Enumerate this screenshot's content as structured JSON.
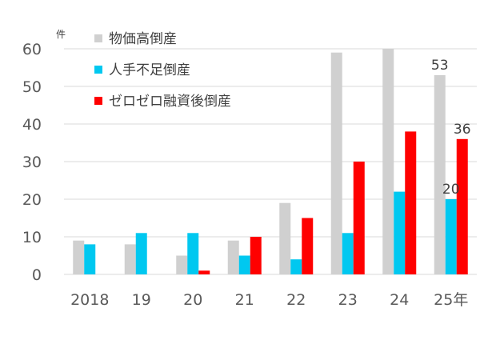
{
  "chart_data": {
    "type": "bar",
    "unit_label": "件",
    "categories": [
      "2018",
      "19",
      "20",
      "21",
      "22",
      "23",
      "24",
      "25年"
    ],
    "series": [
      {
        "name": "物価高倒産",
        "color": "#d0d0d0",
        "values": [
          9,
          8,
          5,
          9,
          19,
          59,
          60,
          53
        ]
      },
      {
        "name": "人手不足倒産",
        "color": "#00c8f0",
        "values": [
          8,
          11,
          11,
          5,
          4,
          11,
          22,
          20
        ]
      },
      {
        "name": "ゼロゼロ融資後倒産",
        "color": "#ff0000",
        "values": [
          0,
          0,
          1,
          10,
          15,
          30,
          38,
          36
        ]
      }
    ],
    "ylim": [
      0,
      60
    ],
    "yticks": [
      "0",
      "10",
      "20",
      "30",
      "40",
      "50",
      "60"
    ],
    "grid": true,
    "legend": "top-left",
    "data_labels": [
      {
        "series": 0,
        "category": 7,
        "text": "53"
      },
      {
        "series": 1,
        "category": 7,
        "text": "20"
      },
      {
        "series": 2,
        "category": 7,
        "text": "36"
      }
    ]
  }
}
